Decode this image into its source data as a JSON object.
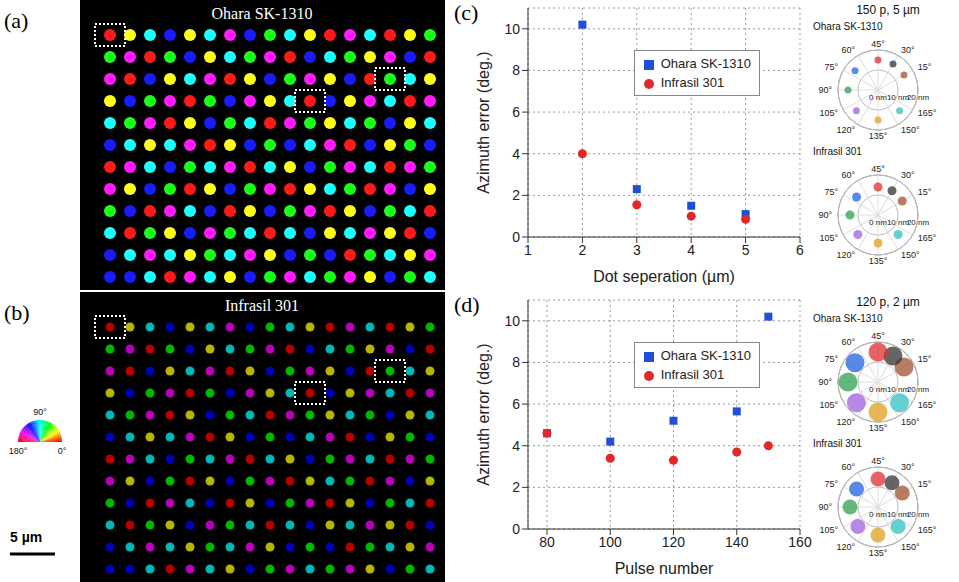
{
  "chart_data": [
    {
      "type": "image",
      "label": "(a)",
      "title": "Ohara SK-1310",
      "dots": [
        [
          0,
          30,
          90,
          120,
          30,
          90,
          150,
          120,
          60,
          90,
          30,
          0,
          150,
          90,
          0,
          30,
          60
        ],
        [
          60,
          150,
          0,
          60,
          120,
          30,
          90,
          60,
          150,
          0,
          120,
          90,
          60,
          30,
          150,
          120,
          0
        ],
        [
          150,
          0,
          120,
          30,
          90,
          150,
          0,
          30,
          120,
          60,
          150,
          30,
          120,
          0,
          60,
          90,
          30
        ],
        [
          30,
          120,
          60,
          150,
          0,
          60,
          120,
          150,
          30,
          90,
          0,
          120,
          30,
          150,
          90,
          0,
          150
        ],
        [
          90,
          60,
          150,
          0,
          30,
          120,
          60,
          90,
          0,
          150,
          60,
          30,
          90,
          60,
          120,
          30,
          90
        ],
        [
          120,
          90,
          30,
          90,
          150,
          0,
          30,
          120,
          60,
          120,
          90,
          150,
          0,
          120,
          30,
          60,
          120
        ],
        [
          0,
          150,
          90,
          120,
          60,
          90,
          150,
          0,
          90,
          30,
          120,
          60,
          150,
          90,
          0,
          150,
          60
        ],
        [
          150,
          30,
          120,
          60,
          0,
          30,
          120,
          60,
          150,
          0,
          30,
          90,
          60,
          0,
          150,
          120,
          30
        ],
        [
          60,
          120,
          0,
          150,
          90,
          120,
          0,
          30,
          120,
          60,
          150,
          0,
          30,
          120,
          60,
          90,
          0
        ],
        [
          90,
          0,
          60,
          30,
          120,
          150,
          60,
          90,
          0,
          90,
          120,
          30,
          90,
          150,
          30,
          0,
          120
        ],
        [
          120,
          90,
          150,
          90,
          30,
          60,
          90,
          150,
          30,
          120,
          60,
          120,
          0,
          60,
          90,
          30,
          150
        ],
        [
          120,
          120,
          90,
          0,
          150,
          90,
          30,
          120,
          60,
          150,
          90,
          60,
          150,
          30,
          120,
          60,
          90
        ]
      ]
    },
    {
      "type": "image",
      "label": "(b)",
      "title": "Infrasil 301",
      "dots": [
        [
          0,
          30,
          90,
          120,
          30,
          90,
          150,
          120,
          60,
          90,
          30,
          0,
          150,
          90,
          0,
          30,
          60
        ],
        [
          60,
          150,
          0,
          60,
          120,
          30,
          90,
          60,
          150,
          0,
          120,
          90,
          60,
          30,
          150,
          120,
          0
        ],
        [
          150,
          0,
          120,
          30,
          90,
          150,
          0,
          30,
          120,
          60,
          150,
          30,
          120,
          0,
          60,
          90,
          30
        ],
        [
          30,
          120,
          60,
          150,
          0,
          60,
          120,
          150,
          30,
          90,
          0,
          120,
          30,
          150,
          90,
          0,
          150
        ],
        [
          90,
          60,
          150,
          0,
          30,
          120,
          60,
          90,
          0,
          150,
          60,
          30,
          90,
          60,
          120,
          30,
          90
        ],
        [
          120,
          90,
          30,
          90,
          150,
          0,
          30,
          120,
          60,
          120,
          90,
          150,
          0,
          120,
          30,
          60,
          120
        ],
        [
          0,
          150,
          90,
          120,
          60,
          90,
          150,
          0,
          90,
          30,
          120,
          60,
          150,
          90,
          0,
          150,
          60
        ],
        [
          150,
          30,
          120,
          60,
          0,
          30,
          120,
          60,
          150,
          0,
          30,
          90,
          60,
          0,
          150,
          120,
          30
        ],
        [
          60,
          120,
          0,
          150,
          90,
          120,
          0,
          30,
          120,
          60,
          150,
          0,
          30,
          120,
          60,
          90,
          0
        ],
        [
          90,
          0,
          60,
          30,
          120,
          150,
          60,
          90,
          0,
          90,
          120,
          30,
          90,
          150,
          30,
          0,
          120
        ],
        [
          120,
          90,
          150,
          90,
          30,
          60,
          90,
          150,
          30,
          120,
          60,
          120,
          0,
          60,
          90,
          30,
          150
        ],
        [
          120,
          120,
          90,
          0,
          150,
          90,
          30,
          120,
          60,
          150,
          90,
          60,
          150,
          30,
          120,
          60,
          90
        ]
      ],
      "colorbar_ticks": [
        {
          "value": 0,
          "label": "0°"
        },
        {
          "value": 90,
          "label": "90°"
        },
        {
          "value": 180,
          "label": "180°"
        }
      ],
      "scale_bar": {
        "length": 5,
        "label": "5 µm"
      }
    },
    {
      "type": "scatter",
      "label": "(c)",
      "x_label": "Dot seperation (µm)",
      "y_label": "Azimuth error (deg.)",
      "x": [
        2,
        3,
        4,
        5
      ],
      "series": [
        {
          "name": "Ohara SK-1310",
          "color": "#1f4fd8",
          "marker": "square",
          "values": [
            10.2,
            2.3,
            1.5,
            1.1
          ]
        },
        {
          "name": "Infrasil 301",
          "color": "#e02828",
          "marker": "circle",
          "values": [
            4.0,
            1.55,
            1.0,
            0.85
          ]
        }
      ],
      "xlim": [
        1,
        6
      ],
      "xticks": [
        1,
        2,
        3,
        4,
        5,
        6
      ],
      "ylim": [
        0,
        11
      ],
      "yticks": [
        0,
        2,
        4,
        6,
        8,
        10
      ],
      "grid": true,
      "legend": "upper right"
    },
    {
      "type": "scatter",
      "label": "(d)",
      "x_label": "Pulse number",
      "y_label": "Azimuth error (deg.)",
      "x": [
        80,
        100,
        120,
        140,
        150
      ],
      "series": [
        {
          "name": "Ohara SK-1310",
          "color": "#1f4fd8",
          "marker": "square",
          "values": [
            4.6,
            4.2,
            5.2,
            5.65,
            10.2
          ]
        },
        {
          "name": "Infrasil 301",
          "color": "#e02828",
          "marker": "circle",
          "values": [
            4.6,
            3.4,
            3.3,
            3.7,
            4.0
          ]
        }
      ],
      "xlim": [
        74,
        160
      ],
      "xticks": [
        80,
        100,
        120,
        140,
        160
      ],
      "ylim": [
        0,
        11
      ],
      "yticks": [
        0,
        2,
        4,
        6,
        8,
        10
      ],
      "grid": true,
      "legend": "upper right"
    },
    {
      "type": "polar_scatter",
      "title": "150 p, 5 µm",
      "rlim": [
        0,
        20
      ],
      "rticks": [
        {
          "value": 0,
          "label": "0 nm"
        },
        {
          "value": 10,
          "label": "10 nm"
        },
        {
          "value": 20,
          "label": "20 nm"
        }
      ],
      "angle_ticks": [
        {
          "value": 15,
          "label": "15°"
        },
        {
          "value": 30,
          "label": "30°"
        },
        {
          "value": 45,
          "label": "45°"
        },
        {
          "value": 60,
          "label": "60°"
        },
        {
          "value": 75,
          "label": "75°"
        },
        {
          "value": 90,
          "label": "90°"
        },
        {
          "value": 105,
          "label": "105°"
        },
        {
          "value": 120,
          "label": "120°"
        },
        {
          "value": 135,
          "label": "135°"
        },
        {
          "value": 150,
          "label": "150°"
        },
        {
          "value": 165,
          "label": "165°"
        }
      ],
      "panels": [
        {
          "subtitle": "Ohara SK-1310",
          "clusters": [
            {
              "azimuth": 15,
              "r": 15,
              "spread": 1,
              "color": "#a0522d"
            },
            {
              "azimuth": 30,
              "r": 15,
              "spread": 1,
              "color": "#333333"
            },
            {
              "azimuth": 45,
              "r": 15,
              "spread": 1,
              "color": "#e03030"
            },
            {
              "azimuth": 70,
              "r": 15,
              "spread": 1,
              "color": "#2060e0"
            },
            {
              "azimuth": 90,
              "r": 15,
              "spread": 1,
              "color": "#30a050"
            },
            {
              "azimuth": 112,
              "r": 15,
              "spread": 1,
              "color": "#a060e0"
            },
            {
              "azimuth": 135,
              "r": 15,
              "spread": 1,
              "color": "#e0a020"
            },
            {
              "azimuth": 158,
              "r": 15,
              "spread": 1,
              "color": "#30c0c0"
            }
          ]
        },
        {
          "subtitle": "Infrasil 301",
          "clusters": [
            {
              "azimuth": 15,
              "r": 14,
              "spread": 1.5,
              "color": "#a0522d"
            },
            {
              "azimuth": 30,
              "r": 14,
              "spread": 1.5,
              "color": "#333333"
            },
            {
              "azimuth": 45,
              "r": 14,
              "spread": 1.5,
              "color": "#e03030"
            },
            {
              "azimuth": 70,
              "r": 14,
              "spread": 1.5,
              "color": "#2060e0"
            },
            {
              "azimuth": 90,
              "r": 14,
              "spread": 1.5,
              "color": "#30a050"
            },
            {
              "azimuth": 112,
              "r": 14,
              "spread": 1.5,
              "color": "#a060e0"
            },
            {
              "azimuth": 135,
              "r": 14,
              "spread": 1.5,
              "color": "#e0a020"
            },
            {
              "azimuth": 158,
              "r": 14,
              "spread": 1.5,
              "color": "#30c0c0"
            }
          ]
        }
      ]
    },
    {
      "type": "polar_scatter",
      "title": "120 p, 2 µm",
      "rlim": [
        0,
        20
      ],
      "rticks": [
        {
          "value": 0,
          "label": "0 nm"
        },
        {
          "value": 10,
          "label": "10 nm"
        },
        {
          "value": 20,
          "label": "20 nm"
        }
      ],
      "angle_ticks": [
        {
          "value": 15,
          "label": "15°"
        },
        {
          "value": 30,
          "label": "30°"
        },
        {
          "value": 45,
          "label": "45°"
        },
        {
          "value": 60,
          "label": "60°"
        },
        {
          "value": 75,
          "label": "75°"
        },
        {
          "value": 90,
          "label": "90°"
        },
        {
          "value": 105,
          "label": "105°"
        },
        {
          "value": 120,
          "label": "120°"
        },
        {
          "value": 135,
          "label": "135°"
        },
        {
          "value": 150,
          "label": "150°"
        },
        {
          "value": 165,
          "label": "165°"
        }
      ],
      "panels": [
        {
          "subtitle": "Ohara SK-1310",
          "clusters": [
            {
              "azimuth": 15,
              "r": 15,
              "spread": 4,
              "color": "#a0522d"
            },
            {
              "azimuth": 30,
              "r": 15,
              "spread": 4,
              "color": "#333333"
            },
            {
              "azimuth": 45,
              "r": 15,
              "spread": 4,
              "color": "#e03030"
            },
            {
              "azimuth": 70,
              "r": 15,
              "spread": 4,
              "color": "#2060e0"
            },
            {
              "azimuth": 90,
              "r": 15,
              "spread": 4,
              "color": "#30a050"
            },
            {
              "azimuth": 112,
              "r": 15,
              "spread": 4,
              "color": "#a060e0"
            },
            {
              "azimuth": 135,
              "r": 15,
              "spread": 4,
              "color": "#e0a020"
            },
            {
              "azimuth": 158,
              "r": 15,
              "spread": 4,
              "color": "#30c0c0"
            }
          ]
        },
        {
          "subtitle": "Infrasil 301",
          "clusters": [
            {
              "azimuth": 15,
              "r": 14,
              "spread": 3,
              "color": "#a0522d"
            },
            {
              "azimuth": 30,
              "r": 14,
              "spread": 3,
              "color": "#333333"
            },
            {
              "azimuth": 45,
              "r": 14,
              "spread": 3,
              "color": "#e03030"
            },
            {
              "azimuth": 70,
              "r": 14,
              "spread": 3,
              "color": "#2060e0"
            },
            {
              "azimuth": 90,
              "r": 14,
              "spread": 3,
              "color": "#30a050"
            },
            {
              "azimuth": 112,
              "r": 14,
              "spread": 3,
              "color": "#a060e0"
            },
            {
              "azimuth": 135,
              "r": 14,
              "spread": 3,
              "color": "#e0a020"
            },
            {
              "azimuth": 158,
              "r": 14,
              "spread": 3,
              "color": "#30c0c0"
            }
          ]
        }
      ]
    }
  ]
}
